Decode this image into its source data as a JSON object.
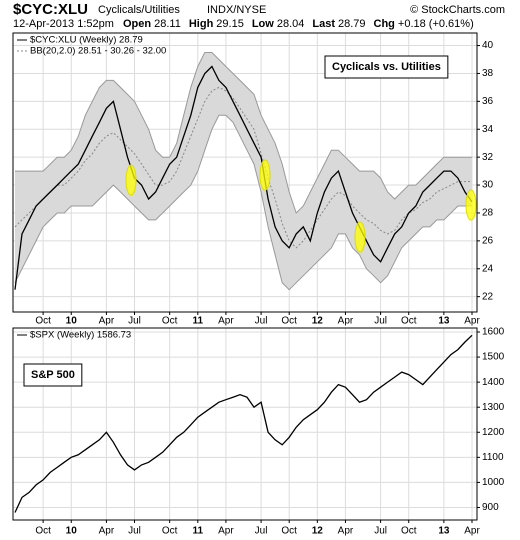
{
  "header": {
    "symbol": "$CYC:XLU",
    "name": "Cyclicals/Utilities",
    "exchange": "INDX/NYSE",
    "copyright": "© StockCharts.com",
    "date": "12-Apr-2013 1:52pm",
    "quote": [
      {
        "label": "Open",
        "value": "28.11"
      },
      {
        "label": "High",
        "value": "29.15"
      },
      {
        "label": "Low",
        "value": "28.04"
      },
      {
        "label": "Last",
        "value": "28.79"
      },
      {
        "label": "Chg",
        "value": "+0.18 (+0.61%)"
      }
    ]
  },
  "chart_data": [
    {
      "type": "line",
      "legend": [
        "$CYC:XLU (Weekly) 28.79",
        "BB(20,2.0) 28.51 - 30.26 - 32.00"
      ],
      "annotation": "Cyclicals vs. Utilities",
      "categories": [
        null,
        null,
        null,
        null,
        "Oct",
        null,
        null,
        null,
        "10",
        null,
        null,
        null,
        null,
        "Apr",
        null,
        null,
        null,
        "Jul",
        null,
        null,
        null,
        null,
        "Oct",
        null,
        null,
        null,
        "11",
        null,
        null,
        null,
        "Apr",
        null,
        null,
        null,
        null,
        "Jul",
        null,
        null,
        null,
        "Oct",
        null,
        null,
        null,
        "12",
        null,
        null,
        null,
        "Apr",
        null,
        null,
        null,
        null,
        "Jul",
        null,
        null,
        null,
        "Oct",
        null,
        null,
        null,
        null,
        "13",
        null,
        null,
        null,
        "Apr"
      ],
      "series": [
        {
          "color": "#000000",
          "values": [
            22.5,
            26.5,
            27.5,
            28.5,
            29,
            29.5,
            30,
            30.5,
            31,
            31.5,
            32.5,
            33.5,
            34.5,
            35.5,
            36,
            34,
            32,
            30.5,
            30,
            29,
            29.5,
            30.5,
            31.5,
            32,
            33.5,
            35,
            37,
            38,
            38.5,
            37.5,
            37,
            36,
            35,
            34,
            33,
            32,
            29,
            27,
            26,
            25.5,
            26.5,
            27,
            26,
            28,
            29.5,
            30.5,
            31,
            29.5,
            28,
            27,
            26,
            25,
            24.5,
            25.5,
            26.5,
            27,
            28,
            28.5,
            29.5,
            30,
            30.5,
            31,
            31,
            30.5,
            29.5,
            28.79
          ]
        }
      ],
      "bands": {
        "color": "#d9d9d9",
        "upper": [
          31,
          31,
          31,
          31,
          31,
          31.5,
          32,
          32,
          32.5,
          33.5,
          35,
          36,
          37,
          37.5,
          37.5,
          37,
          36.5,
          36,
          35,
          34,
          32.5,
          32,
          32,
          33,
          35,
          37,
          38.5,
          39.5,
          39.5,
          39,
          38.5,
          38,
          37.5,
          37,
          36.5,
          35,
          34,
          33,
          31.5,
          29.5,
          28,
          28.5,
          29.5,
          30.5,
          31.5,
          32.5,
          32.5,
          32,
          31.5,
          31,
          31,
          31,
          30.5,
          29.5,
          29,
          29.5,
          30,
          30,
          30.5,
          31,
          31.5,
          32,
          32,
          32,
          32,
          32
        ],
        "middle": [
          27,
          27.5,
          28,
          28.5,
          29,
          29.5,
          30,
          30,
          30.5,
          31,
          31.75,
          32.25,
          33,
          33.5,
          33.75,
          33.25,
          32.75,
          32.25,
          31.5,
          30.75,
          30,
          30,
          30.25,
          31,
          32.25,
          33.5,
          34.75,
          36,
          36.75,
          37,
          36.75,
          36.25,
          35.5,
          34.75,
          34,
          32.25,
          30.5,
          29,
          27.25,
          26,
          25.5,
          26,
          26.75,
          27.5,
          28.25,
          29,
          29.5,
          29.25,
          28.5,
          28,
          27.5,
          27.25,
          26.75,
          26.5,
          26.75,
          27.5,
          28,
          28.25,
          28.75,
          29,
          29.5,
          29.75,
          30,
          30.25,
          30.25,
          30.26
        ],
        "lower": [
          23,
          24,
          25,
          26,
          27,
          27.5,
          28,
          28,
          28.5,
          28.5,
          28.5,
          28.5,
          29,
          29.5,
          30,
          29.5,
          29,
          28.5,
          28,
          27.5,
          27.5,
          28,
          28.5,
          29,
          29.5,
          30,
          31,
          32.5,
          34,
          35,
          35,
          34.5,
          33.5,
          32.5,
          31.5,
          29.5,
          27,
          25,
          23,
          22.5,
          23,
          23.5,
          24,
          24.5,
          25,
          25.5,
          26.5,
          26.5,
          25.5,
          25,
          24,
          23.5,
          23,
          23.5,
          24.5,
          25.5,
          26,
          26.5,
          27,
          27,
          27.5,
          27.5,
          28,
          28.5,
          28.5,
          28.51
        ]
      },
      "ylim": [
        20.9,
        40.9
      ],
      "yticks": [
        22,
        24,
        26,
        28,
        30,
        32,
        34,
        36,
        38,
        40
      ],
      "grid": true
    },
    {
      "type": "line",
      "legend": [
        "$SPX (Weekly) 1586.73"
      ],
      "annotation": "S&P 500",
      "categories": [
        null,
        null,
        null,
        null,
        "Oct",
        null,
        null,
        null,
        "10",
        null,
        null,
        null,
        null,
        "Apr",
        null,
        null,
        null,
        "Jul",
        null,
        null,
        null,
        null,
        "Oct",
        null,
        null,
        null,
        "11",
        null,
        null,
        null,
        "Apr",
        null,
        null,
        null,
        null,
        "Jul",
        null,
        null,
        null,
        "Oct",
        null,
        null,
        null,
        "12",
        null,
        null,
        null,
        "Apr",
        null,
        null,
        null,
        null,
        "Jul",
        null,
        null,
        null,
        "Oct",
        null,
        null,
        null,
        null,
        "13",
        null,
        null,
        null,
        "Apr"
      ],
      "series": [
        {
          "color": "#000000",
          "values": [
            880,
            940,
            960,
            990,
            1010,
            1040,
            1060,
            1080,
            1100,
            1110,
            1130,
            1150,
            1170,
            1200,
            1160,
            1110,
            1070,
            1050,
            1070,
            1080,
            1100,
            1120,
            1150,
            1180,
            1200,
            1230,
            1260,
            1280,
            1300,
            1320,
            1330,
            1340,
            1350,
            1340,
            1300,
            1320,
            1200,
            1170,
            1150,
            1180,
            1220,
            1250,
            1270,
            1290,
            1320,
            1360,
            1390,
            1380,
            1350,
            1320,
            1330,
            1360,
            1380,
            1400,
            1420,
            1440,
            1430,
            1410,
            1390,
            1420,
            1450,
            1480,
            1510,
            1530,
            1560,
            1586.73
          ]
        }
      ],
      "ylim": [
        850,
        1616
      ],
      "yticks": [
        900,
        1000,
        1100,
        1200,
        1300,
        1400,
        1500,
        1600
      ],
      "grid": true
    }
  ]
}
